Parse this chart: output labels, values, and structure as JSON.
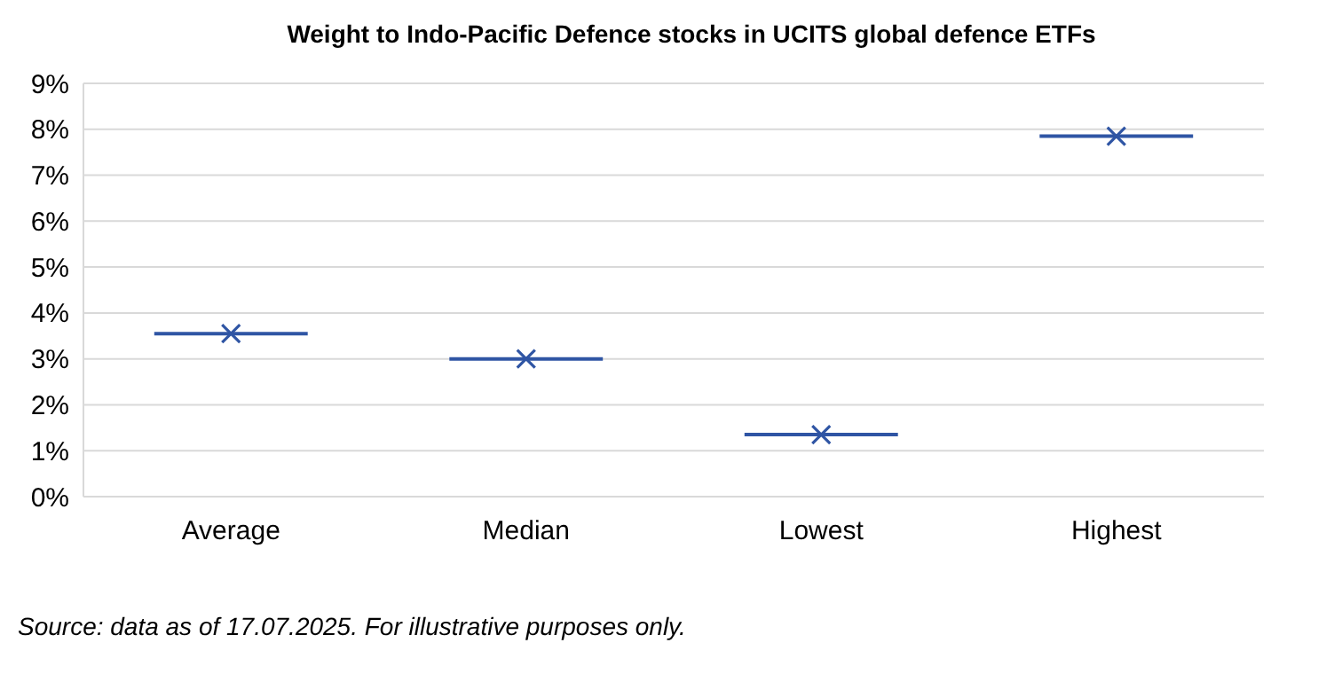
{
  "chart_data": {
    "type": "scatter",
    "title": "Weight to Indo-Pacific Defence stocks in UCITS global defence ETFs",
    "categories": [
      "Average",
      "Median",
      "Lowest",
      "Highest"
    ],
    "values": [
      3.55,
      3.0,
      1.35,
      7.85
    ],
    "color": "#2f55a4",
    "marker": "cross",
    "ylim": [
      0,
      9
    ],
    "yticks": [
      {
        "value": 0,
        "label": "0%"
      },
      {
        "value": 1,
        "label": "1%"
      },
      {
        "value": 2,
        "label": "2%"
      },
      {
        "value": 3,
        "label": "3%"
      },
      {
        "value": 4,
        "label": "4%"
      },
      {
        "value": 5,
        "label": "5%"
      },
      {
        "value": 6,
        "label": "6%"
      },
      {
        "value": 7,
        "label": "7%"
      },
      {
        "value": 8,
        "label": "8%"
      },
      {
        "value": 9,
        "label": "9%"
      }
    ],
    "grid": "y",
    "annotations": [
      "Source: data as of 17.07.2025. For illustrative purposes only."
    ]
  }
}
